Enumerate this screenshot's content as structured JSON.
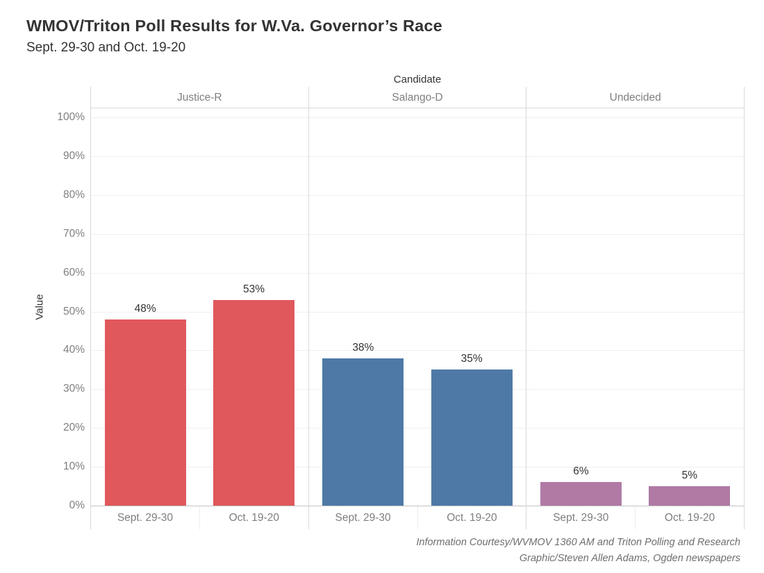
{
  "chart_data": {
    "type": "bar",
    "title": "WMOV/Triton Poll Results for W.Va. Governor’s Race",
    "subtitle": "Sept. 29-30 and Oct. 19-20",
    "facet_title": "Candidate",
    "categories": [
      "Sept. 29-30",
      "Oct. 19-20"
    ],
    "facets": [
      {
        "name": "Justice-R",
        "values": [
          48,
          53
        ],
        "labels": [
          "48%",
          "53%"
        ],
        "color": "#e0585c"
      },
      {
        "name": "Salango-D",
        "values": [
          38,
          35
        ],
        "labels": [
          "38%",
          "35%"
        ],
        "color": "#4e79a7"
      },
      {
        "name": "Undecided",
        "values": [
          6,
          5
        ],
        "labels": [
          "6%",
          "5%"
        ],
        "color": "#b07aa5"
      }
    ],
    "ylabel": "Value",
    "ylim": [
      0,
      100
    ],
    "ytick_step": 10,
    "ytick_format": "percent",
    "grid": true,
    "legend": "none",
    "bar_value_labels": true
  },
  "footer": {
    "line1": "Information Courtesy/WVMOV 1360 AM and Triton Polling and Research",
    "line2": "Graphic/Steven Allen Adams, Ogden newspapers"
  }
}
